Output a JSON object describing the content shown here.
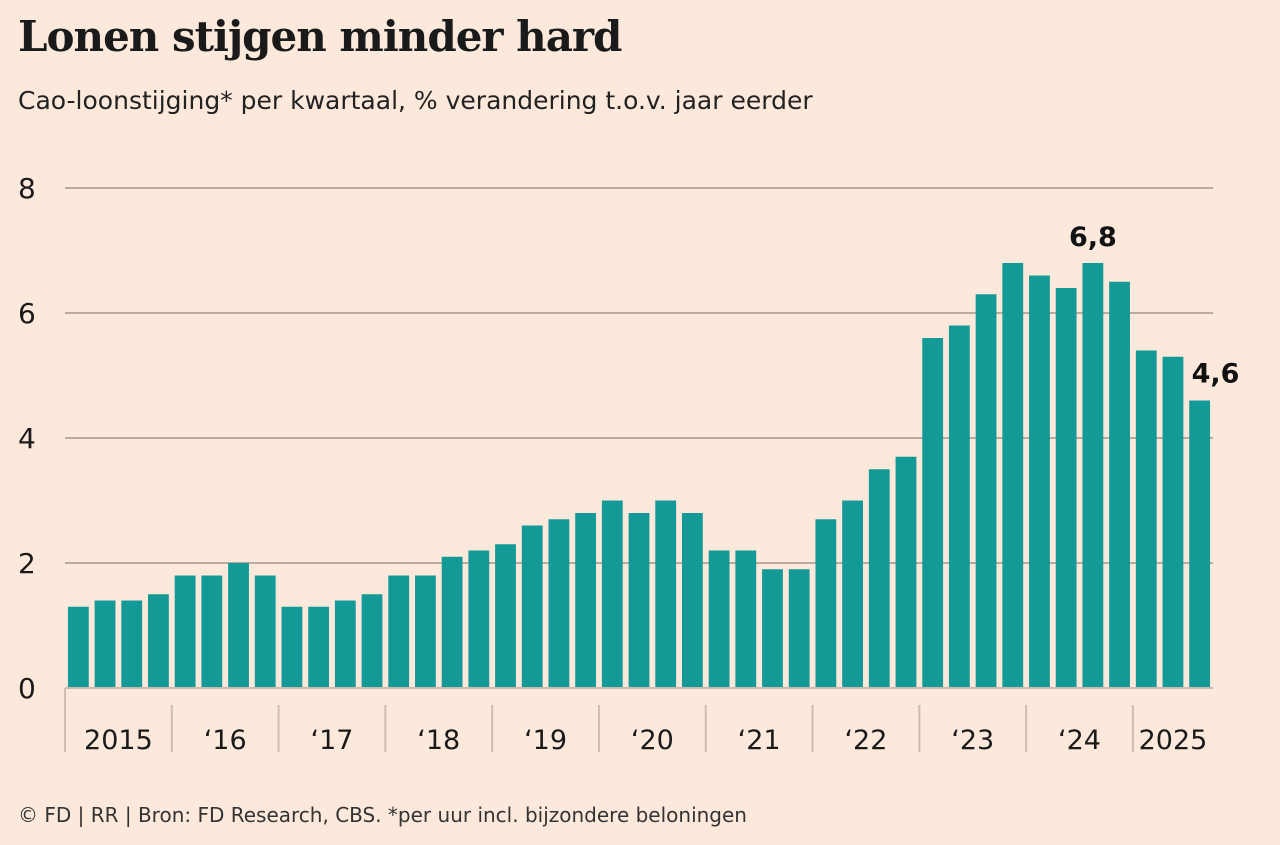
{
  "chart_data": {
    "type": "bar",
    "title": "Lonen stijgen minder hard",
    "subtitle": "Cao-loonstijging* per kwartaal, % verandering t.o.v. jaar eerder",
    "footer": "© FD | RR | Bron: FD Research, CBS. *per uur incl. bijzondere beloningen",
    "ylim": [
      0,
      8
    ],
    "yticks": [
      0,
      2,
      4,
      6,
      8
    ],
    "year_labels": [
      "2015",
      "‘16",
      "‘17",
      "‘18",
      "‘19",
      "‘20",
      "‘21",
      "‘22",
      "‘23",
      "‘24",
      "2025"
    ],
    "grid": true,
    "bar_color": "#139a97",
    "values": [
      1.3,
      1.4,
      1.4,
      1.5,
      1.8,
      1.8,
      2.0,
      1.8,
      1.3,
      1.3,
      1.4,
      1.5,
      1.8,
      1.8,
      2.1,
      2.2,
      2.3,
      2.6,
      2.7,
      2.8,
      3.0,
      2.8,
      3.0,
      2.8,
      2.2,
      2.2,
      1.9,
      1.9,
      2.7,
      3.0,
      3.5,
      3.7,
      5.6,
      5.8,
      6.3,
      6.8,
      6.6,
      6.4,
      6.8,
      6.5,
      5.4,
      5.3,
      4.6
    ],
    "annotations": [
      {
        "index": 38,
        "text": "6,8"
      },
      {
        "index": 42,
        "text": "4,6"
      }
    ]
  }
}
